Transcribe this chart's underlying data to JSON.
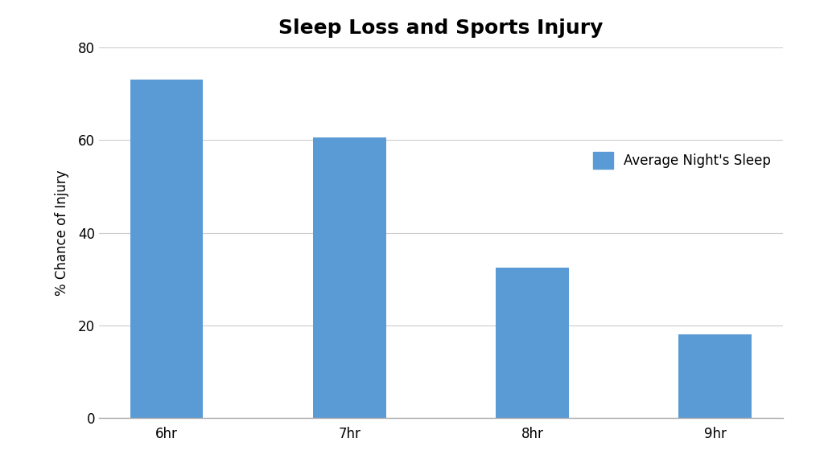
{
  "title": "Sleep Loss and Sports Injury",
  "categories": [
    "6hr",
    "7hr",
    "8hr",
    "9hr"
  ],
  "values": [
    73,
    60.5,
    32.5,
    18
  ],
  "bar_color": "#5B9BD5",
  "ylabel": "% Chance of Injury",
  "ylim": [
    0,
    80
  ],
  "yticks": [
    0,
    20,
    40,
    60,
    80
  ],
  "legend_label": "Average Night's Sleep",
  "background_color": "#FFFFFF",
  "title_fontsize": 18,
  "ylabel_fontsize": 12,
  "tick_fontsize": 12,
  "legend_fontsize": 12,
  "bar_width": 0.4
}
